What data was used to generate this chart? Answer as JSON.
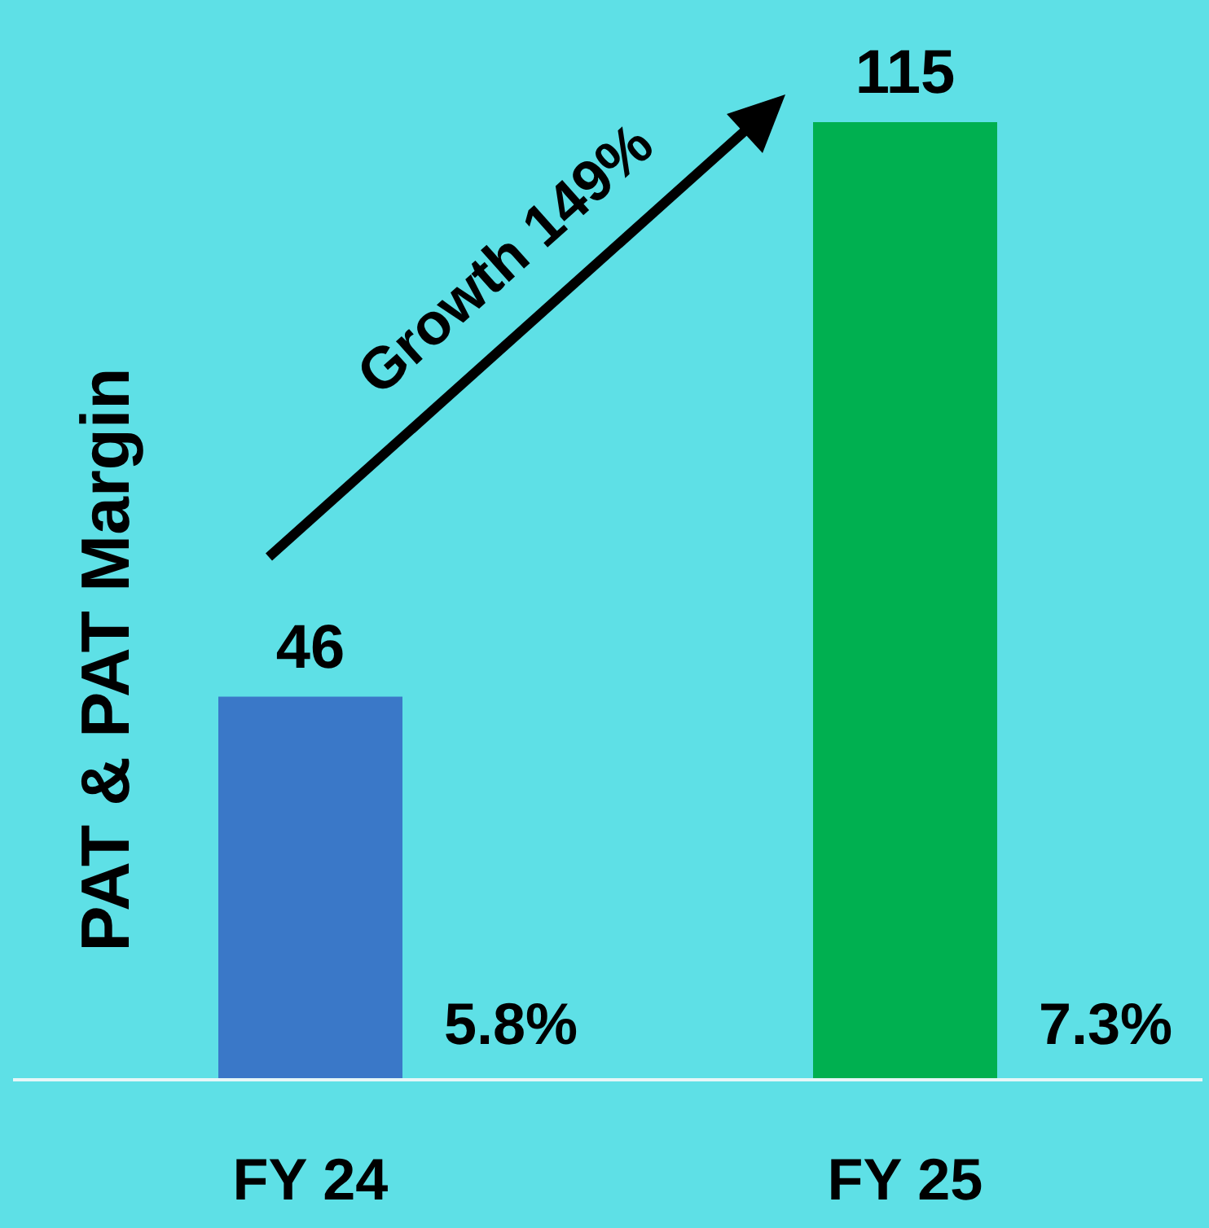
{
  "chart_data": {
    "type": "bar",
    "ylabel": "PAT & PAT Margin",
    "categories": [
      "FY 24",
      "FY 25"
    ],
    "values": [
      46,
      115
    ],
    "colors": [
      "#3a78c8",
      "#00b050"
    ],
    "data_labels": true,
    "ylim": [
      0,
      115
    ],
    "tick_labels": "x",
    "annotations": [
      "Growth 149%",
      {
        "text": "5.8%",
        "x": "FY 24",
        "y": 0
      },
      {
        "text": "7.3%",
        "x": "FY 25",
        "y": 0
      }
    ]
  }
}
